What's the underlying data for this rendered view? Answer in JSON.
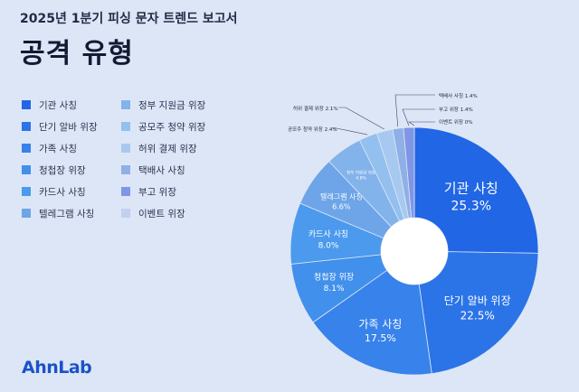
{
  "header": {
    "subtitle": "2025년 1분기 피싱 문자 트렌드 보고서",
    "title": "공격 유형"
  },
  "brand": {
    "logo_text": "AhnLab"
  },
  "chart_data": {
    "type": "pie",
    "variant": "donut",
    "title": "공격 유형",
    "legend_position": "left",
    "slices": [
      {
        "label": "기관 사칭",
        "value": 25.3,
        "display": "25.3%",
        "color": "#2166e5"
      },
      {
        "label": "단기 알바 위장",
        "value": 22.5,
        "display": "22.5%",
        "color": "#2b74e8"
      },
      {
        "label": "가족 사칭",
        "value": 17.5,
        "display": "17.5%",
        "color": "#3782eb"
      },
      {
        "label": "청첩장 위장",
        "value": 8.1,
        "display": "8.1%",
        "color": "#4190ec"
      },
      {
        "label": "카드사 사칭",
        "value": 8.0,
        "display": "8.0%",
        "color": "#4b9aed"
      },
      {
        "label": "텔레그램 사칭",
        "value": 6.6,
        "display": "6.6%",
        "color": "#6ea5e8"
      },
      {
        "label": "정부 지원금 위장",
        "value": 4.8,
        "display": "4.8%",
        "color": "#83b3eb"
      },
      {
        "label": "공모주 청약 위장",
        "value": 2.4,
        "display": "2.4%",
        "color": "#93c0ee"
      },
      {
        "label": "허위 결제 위장",
        "value": 2.1,
        "display": "2.1%",
        "color": "#a7c9f0"
      },
      {
        "label": "택배사 사칭",
        "value": 1.4,
        "display": "1.4%",
        "color": "#8fb0e6"
      },
      {
        "label": "부고 위장",
        "value": 1.4,
        "display": "1.4%",
        "color": "#7f95e6"
      },
      {
        "label": "이벤트 위장",
        "value": 0.0,
        "display": "0%",
        "color": "#c2cff1"
      }
    ]
  }
}
